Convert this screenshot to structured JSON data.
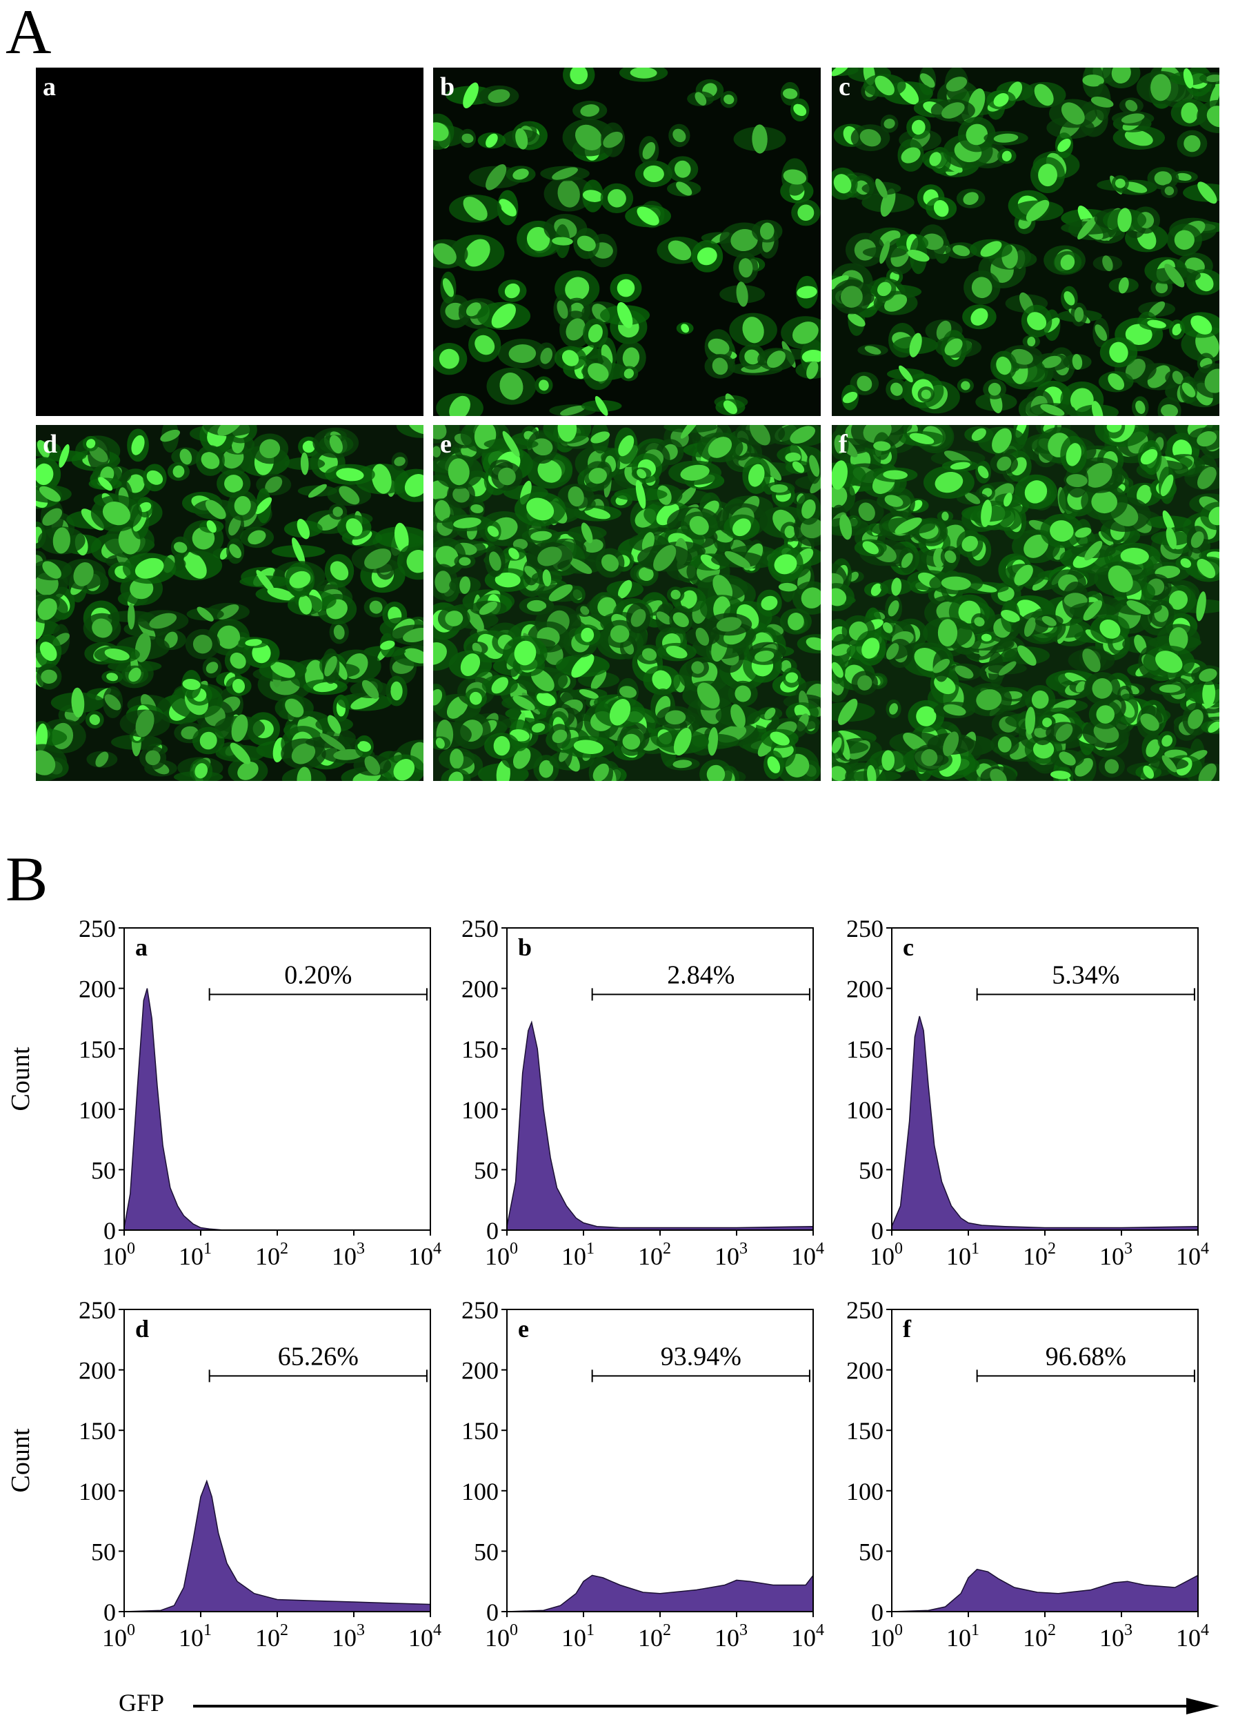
{
  "panel_a": {
    "letter": "A",
    "images": [
      {
        "label": "a",
        "intensity": 0.0
      },
      {
        "label": "b",
        "intensity": 0.25
      },
      {
        "label": "c",
        "intensity": 0.45
      },
      {
        "label": "d",
        "intensity": 0.55
      },
      {
        "label": "e",
        "intensity": 0.9
      },
      {
        "label": "f",
        "intensity": 0.95
      }
    ]
  },
  "panel_b": {
    "letter": "B",
    "x_axis_label": "GFP",
    "y_axis_label": "Count"
  },
  "colors": {
    "histogram_fill": "#5b3a96",
    "histogram_stroke": "#1a0f33",
    "fluorescence": "#3fdc3f",
    "background_dark": "#030503"
  },
  "chart_data": [
    {
      "type": "area",
      "label": "a",
      "x_scale": "log",
      "xlim": [
        1,
        10000
      ],
      "ylim": [
        0,
        250
      ],
      "yticks": [
        0,
        50,
        100,
        150,
        200,
        250
      ],
      "xticks": [
        "10^0",
        "10^1",
        "10^2",
        "10^3",
        "10^4"
      ],
      "ylabel": "Count",
      "gate_range": [
        13,
        9000
      ],
      "gate_percent": "0.20%",
      "series": [
        {
          "x": [
            1,
            1.2,
            1.5,
            1.8,
            2.0,
            2.3,
            2.7,
            3.2,
            4,
            5,
            6,
            8,
            10,
            13,
            20,
            100,
            10000
          ],
          "y": [
            2,
            30,
            120,
            190,
            200,
            175,
            120,
            70,
            35,
            20,
            12,
            5,
            2,
            1,
            0,
            0,
            0
          ]
        }
      ]
    },
    {
      "type": "area",
      "label": "b",
      "x_scale": "log",
      "xlim": [
        1,
        10000
      ],
      "ylim": [
        0,
        250
      ],
      "yticks": [
        0,
        50,
        100,
        150,
        200,
        250
      ],
      "xticks": [
        "10^0",
        "10^1",
        "10^2",
        "10^3",
        "10^4"
      ],
      "ylabel": "",
      "gate_range": [
        13,
        9000
      ],
      "gate_percent": "2.84%",
      "series": [
        {
          "x": [
            1,
            1.3,
            1.6,
            1.9,
            2.1,
            2.5,
            3,
            3.7,
            4.5,
            6,
            8,
            10,
            15,
            30,
            100,
            1000,
            10000
          ],
          "y": [
            3,
            40,
            130,
            165,
            172,
            150,
            100,
            60,
            35,
            20,
            10,
            6,
            3,
            2,
            2,
            2,
            3
          ]
        }
      ]
    },
    {
      "type": "area",
      "label": "c",
      "x_scale": "log",
      "xlim": [
        1,
        10000
      ],
      "ylim": [
        0,
        250
      ],
      "yticks": [
        0,
        50,
        100,
        150,
        200,
        250
      ],
      "xticks": [
        "10^0",
        "10^1",
        "10^2",
        "10^3",
        "10^4"
      ],
      "ylabel": "",
      "gate_range": [
        13,
        9000
      ],
      "gate_percent": "5.34%",
      "series": [
        {
          "x": [
            1,
            1.3,
            1.7,
            2.0,
            2.3,
            2.6,
            3,
            3.6,
            4.5,
            6,
            8,
            10,
            15,
            30,
            100,
            1000,
            10000
          ],
          "y": [
            3,
            20,
            90,
            160,
            177,
            165,
            120,
            70,
            40,
            20,
            10,
            6,
            4,
            3,
            2,
            2,
            3
          ]
        }
      ]
    },
    {
      "type": "area",
      "label": "d",
      "x_scale": "log",
      "xlim": [
        1,
        10000
      ],
      "ylim": [
        0,
        250
      ],
      "yticks": [
        0,
        50,
        100,
        150,
        200,
        250
      ],
      "xticks": [
        "10^0",
        "10^1",
        "10^2",
        "10^3",
        "10^4"
      ],
      "ylabel": "Count",
      "gate_range": [
        13,
        9000
      ],
      "gate_percent": "65.26%",
      "series": [
        {
          "x": [
            1,
            3,
            4.5,
            6,
            8,
            10,
            12,
            14,
            17,
            22,
            30,
            50,
            100,
            300,
            1000,
            3000,
            10000
          ],
          "y": [
            0,
            1,
            5,
            20,
            60,
            95,
            108,
            95,
            65,
            40,
            25,
            15,
            10,
            9,
            8,
            7,
            6
          ]
        }
      ]
    },
    {
      "type": "area",
      "label": "e",
      "x_scale": "log",
      "xlim": [
        1,
        10000
      ],
      "ylim": [
        0,
        250
      ],
      "yticks": [
        0,
        50,
        100,
        150,
        200,
        250
      ],
      "xticks": [
        "10^0",
        "10^1",
        "10^2",
        "10^3",
        "10^4"
      ],
      "ylabel": "",
      "gate_range": [
        13,
        9000
      ],
      "gate_percent": "93.94%",
      "series": [
        {
          "x": [
            1,
            3,
            5,
            8,
            10,
            13,
            18,
            30,
            60,
            100,
            300,
            700,
            1000,
            1500,
            3000,
            8000,
            10000
          ],
          "y": [
            0,
            1,
            5,
            15,
            25,
            30,
            28,
            22,
            16,
            15,
            18,
            22,
            26,
            25,
            22,
            22,
            30
          ]
        }
      ]
    },
    {
      "type": "area",
      "label": "f",
      "x_scale": "log",
      "xlim": [
        1,
        10000
      ],
      "ylim": [
        0,
        250
      ],
      "yticks": [
        0,
        50,
        100,
        150,
        200,
        250
      ],
      "xticks": [
        "10^0",
        "10^1",
        "10^2",
        "10^3",
        "10^4"
      ],
      "ylabel": "",
      "gate_range": [
        13,
        9000
      ],
      "gate_percent": "96.68%",
      "series": [
        {
          "x": [
            1,
            3,
            5,
            8,
            10,
            13,
            18,
            25,
            40,
            80,
            150,
            400,
            800,
            1200,
            2000,
            5000,
            10000
          ],
          "y": [
            0,
            1,
            4,
            15,
            28,
            35,
            33,
            27,
            20,
            16,
            15,
            18,
            24,
            25,
            22,
            20,
            30
          ]
        }
      ]
    }
  ]
}
